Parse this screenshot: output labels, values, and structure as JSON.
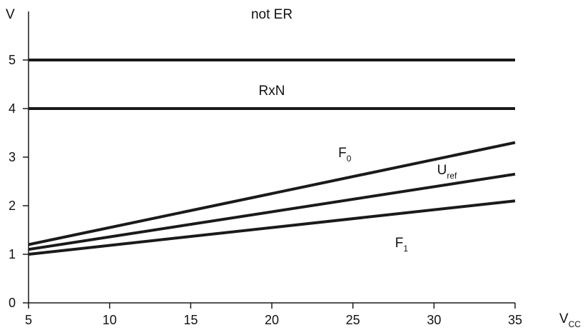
{
  "chart_data": {
    "type": "line",
    "title": "",
    "xlabel": {
      "main": "V",
      "sub": "CC"
    },
    "ylabel": "V",
    "xlim": [
      5,
      35
    ],
    "ylim": [
      0,
      5.5
    ],
    "x_ticks": [
      5,
      10,
      15,
      20,
      25,
      30,
      35
    ],
    "y_ticks": [
      0,
      1,
      2,
      3,
      4,
      5
    ],
    "grid": false,
    "legend": "none",
    "line_color": "#1a1a1a",
    "series": [
      {
        "x": [
          5,
          35
        ],
        "values": [
          5.0,
          5.0
        ]
      },
      {
        "x": [
          5,
          35
        ],
        "values": [
          4.0,
          4.0
        ]
      },
      {
        "x": [
          5,
          35
        ],
        "values": [
          1.2,
          3.3
        ]
      },
      {
        "x": [
          5,
          35
        ],
        "values": [
          1.1,
          2.65
        ]
      },
      {
        "x": [
          5,
          35
        ],
        "values": [
          1.0,
          2.1
        ]
      }
    ],
    "annotations": [
      {
        "main": "not ER",
        "sub": "",
        "x": 20,
        "y": 5.85
      },
      {
        "main": "RxN",
        "sub": "",
        "x": 20,
        "y": 4.28
      },
      {
        "main": "F",
        "sub": "0",
        "x": 24.5,
        "y": 3.0
      },
      {
        "main": "U",
        "sub": "ref",
        "x": 30.8,
        "y": 2.65
      },
      {
        "main": "F",
        "sub": "1",
        "x": 28.0,
        "y": 1.15
      }
    ]
  }
}
